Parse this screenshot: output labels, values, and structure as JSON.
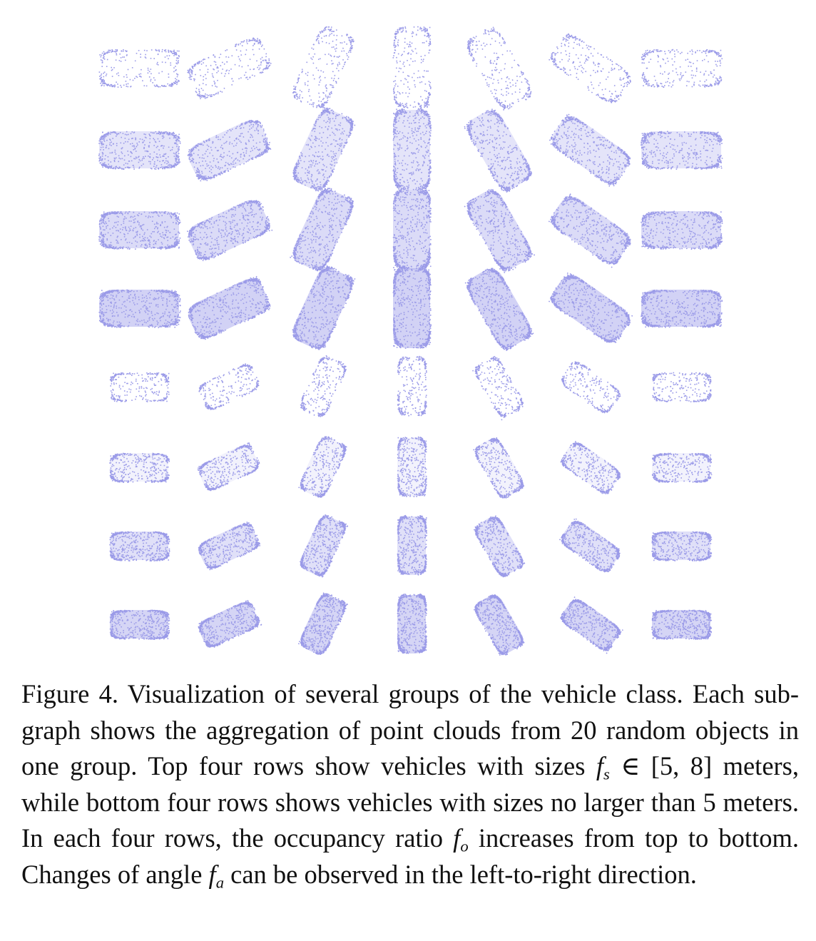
{
  "figure": {
    "panel_description": "8 rows x 7 columns grid of aggregated vehicle point clouds",
    "rows": [
      {
        "size_group": "[5, 8] m",
        "occupancy_level": 1,
        "density": 0.25
      },
      {
        "size_group": "[5, 8] m",
        "occupancy_level": 2,
        "density": 0.75
      },
      {
        "size_group": "[5, 8] m",
        "occupancy_level": 3,
        "density": 0.85
      },
      {
        "size_group": "[5, 8] m",
        "occupancy_level": 4,
        "density": 0.95
      },
      {
        "size_group": "<= 5 m",
        "occupancy_level": 1,
        "density": 0.25
      },
      {
        "size_group": "<= 5 m",
        "occupancy_level": 2,
        "density": 0.6
      },
      {
        "size_group": "<= 5 m",
        "occupancy_level": 3,
        "density": 0.8
      },
      {
        "size_group": "<= 5 m",
        "occupancy_level": 4,
        "density": 0.92
      }
    ],
    "column_angles_deg": [
      0,
      -25,
      -65,
      -90,
      60,
      35,
      0
    ],
    "point_color": "#9b9be8"
  },
  "caption": {
    "label": "Figure 4.",
    "part1": "Visualization of several groups of the vehicle class. Each sub-graph shows the aggregation of point clouds from 20 random objects in one group. Top four rows show vehicles with sizes ",
    "var1": "f",
    "sub1": "s",
    "part2": " ∈ [5, 8] meters, while bottom four rows shows vehicles with sizes no larger than 5 meters. In each four rows, the occupancy ratio ",
    "var2": "f",
    "sub2": "o",
    "part3": " increases from top to bottom. Changes of angle ",
    "var3": "f",
    "sub3": "a",
    "part4": " can be observed in the left-to-right direction."
  }
}
